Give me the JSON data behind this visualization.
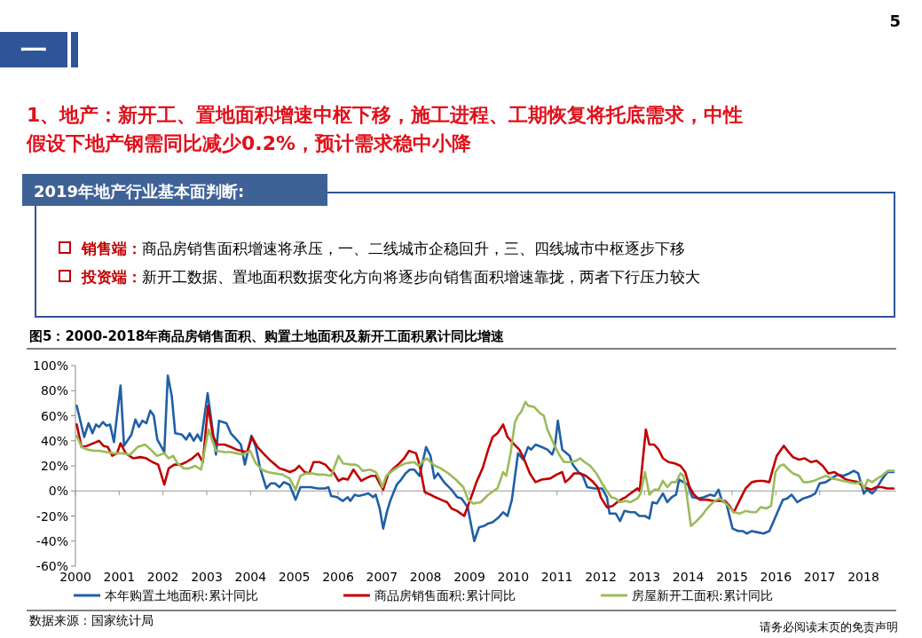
{
  "chart_data": {
    "type": "line",
    "title": "图5：2000-2018年商品房销售面积、购置土地面积及新开工面积累计同比增速",
    "annotations": [
      "5",
      "一",
      "1、地产：新开工、置地面积增速中枢下移，施工进程、工期恢复将托底需求，中性假设下地产钢需同比减少0.2%，预计需求稳中小降",
      "2019年地产行业基本面判断:",
      "销售端：商品房销售面积增速将承压，一、二线城市企稳回升，三、四线城市中枢逐步下移",
      "投资端：新开工数据、置地面积数据变化方向将逐步向销售面积增速靠拢，两者下行压力较大",
      "数据来源：国家统计局",
      "请务必阅读末页的免责声明"
    ],
    "xlim": [
      2000,
      2018.75
    ],
    "xticks": [
      2000,
      2001,
      2002,
      2003,
      2004,
      2005,
      2006,
      2007,
      2008,
      2009,
      2010,
      2011,
      2012,
      2013,
      2014,
      2015,
      2016,
      2017,
      2018
    ],
    "ylim": [
      -60,
      100
    ],
    "yticks": [
      {
        "value": -60,
        "label": "-60%"
      },
      {
        "value": -40,
        "label": "-40%"
      },
      {
        "value": -20,
        "label": "-20%"
      },
      {
        "value": 0,
        "label": "0%"
      },
      {
        "value": 20,
        "label": "20%"
      },
      {
        "value": 40,
        "label": "40%"
      },
      {
        "value": 60,
        "label": "60%"
      },
      {
        "value": 80,
        "label": "80%"
      },
      {
        "value": 100,
        "label": "100%"
      }
    ],
    "legend": "bottom",
    "series": [
      {
        "name": "本年购置土地面积:累计同比",
        "color": "#1f5fa6",
        "x": [
          2000.03,
          2000.2,
          2000.3,
          2000.39,
          2000.47,
          2000.54,
          2000.63,
          2000.71,
          2000.79,
          2000.88,
          2001.03,
          2001.11,
          2001.28,
          2001.37,
          2001.45,
          2001.53,
          2001.62,
          2001.71,
          2001.79,
          2001.87,
          2002.03,
          2002.11,
          2002.2,
          2002.28,
          2002.43,
          2002.53,
          2002.61,
          2002.7,
          2002.79,
          2002.87,
          2003.02,
          2003.21,
          2003.28,
          2003.45,
          2003.55,
          2003.68,
          2003.78,
          2003.87,
          2004.02,
          2004.12,
          2004.22,
          2004.36,
          2004.46,
          2004.56,
          2004.66,
          2004.76,
          2004.89,
          2005.03,
          2005.14,
          2005.24,
          2005.37,
          2005.54,
          2005.7,
          2005.78,
          2005.84,
          2005.98,
          2006.11,
          2006.22,
          2006.28,
          2006.38,
          2006.46,
          2006.59,
          2006.69,
          2006.8,
          2006.86,
          2006.95,
          2007.03,
          2007.12,
          2007.2,
          2007.34,
          2007.44,
          2007.54,
          2007.64,
          2007.74,
          2007.86,
          2008.01,
          2008.11,
          2008.2,
          2008.28,
          2008.42,
          2008.59,
          2008.72,
          2008.82,
          2008.96,
          2009.11,
          2009.22,
          2009.33,
          2009.43,
          2009.53,
          2009.67,
          2009.77,
          2009.87,
          2009.97,
          2010.11,
          2010.23,
          2010.34,
          2010.41,
          2010.51,
          2010.65,
          2010.78,
          2010.89,
          2010.95,
          2011.02,
          2011.12,
          2011.29,
          2011.36,
          2011.49,
          2011.59,
          2011.69,
          2011.86,
          2012.03,
          2012.14,
          2012.2,
          2012.34,
          2012.44,
          2012.54,
          2012.68,
          2012.78,
          2012.88,
          2013.01,
          2013.11,
          2013.18,
          2013.28,
          2013.42,
          2013.52,
          2013.62,
          2013.72,
          2013.79,
          2013.89,
          2013.99,
          2014.09,
          2014.23,
          2014.36,
          2014.5,
          2014.6,
          2014.69,
          2014.77,
          2014.87,
          2015.01,
          2015.14,
          2015.24,
          2015.34,
          2015.45,
          2015.58,
          2015.72,
          2015.85,
          2015.95,
          2016.05,
          2016.16,
          2016.26,
          2016.36,
          2016.49,
          2016.63,
          2016.8,
          2016.9,
          2017,
          2017.14,
          2017.27,
          2017.41,
          2017.54,
          2017.68,
          2017.78,
          2017.88,
          2018.01,
          2018.08,
          2018.2,
          2018.28,
          2018.42,
          2018.55,
          2018.69
        ],
        "values": [
          68,
          43,
          54,
          46,
          53,
          51,
          55,
          52,
          53,
          39,
          84,
          36,
          45,
          57,
          51,
          56,
          54,
          64,
          60,
          41,
          31,
          92,
          76,
          46,
          45,
          41,
          46,
          40,
          45,
          40,
          78,
          29,
          56,
          54,
          46,
          41,
          37,
          21,
          44,
          35,
          18,
          2,
          6,
          6,
          3,
          7,
          5,
          -7,
          3,
          3,
          3,
          2,
          2,
          3,
          -4,
          -5,
          -8,
          -5,
          -8,
          -3,
          -4,
          -3,
          -2,
          -5,
          -3,
          -14,
          -30,
          -16,
          -7,
          5,
          9,
          14,
          17,
          17,
          12,
          35,
          28,
          10,
          14,
          7,
          1,
          -5,
          -6,
          -13,
          -40,
          -29,
          -28,
          -26,
          -25,
          -21,
          -17,
          -20,
          -7,
          30,
          25,
          35,
          33,
          37,
          35,
          33,
          29,
          35,
          56,
          33,
          28,
          21,
          15,
          12,
          3,
          2,
          2,
          -5,
          -18,
          -18,
          -24,
          -16,
          -17,
          -17,
          -20,
          -20,
          -22,
          -9,
          -10,
          -2,
          -9,
          -5,
          -3,
          9,
          7,
          5,
          -5,
          -6,
          -5,
          -3,
          -4,
          1,
          -8,
          -10,
          -30,
          -32,
          -32,
          -34,
          -32,
          -33,
          -34,
          -32,
          -24,
          -16,
          -7,
          -6,
          -3,
          -9,
          -6,
          -4,
          -2,
          6,
          7,
          10,
          13,
          12,
          14,
          16,
          14,
          -2,
          1,
          -2,
          1,
          9,
          15,
          15
        ]
      },
      {
        "name": "商品房销售面积:累计同比",
        "color": "#c00000",
        "x": [
          2000.03,
          2000.14,
          2000.27,
          2000.41,
          2000.54,
          2000.64,
          2000.74,
          2000.84,
          2000.95,
          2001.03,
          2001.15,
          2001.32,
          2001.49,
          2001.62,
          2001.76,
          2001.89,
          2002.03,
          2002.13,
          2002.26,
          2002.4,
          2002.53,
          2002.67,
          2002.8,
          2002.91,
          2003.03,
          2003.14,
          2003.24,
          2003.41,
          2003.55,
          2003.68,
          2003.78,
          2003.92,
          2004.03,
          2004.16,
          2004.29,
          2004.43,
          2004.56,
          2004.66,
          2004.76,
          2004.9,
          2005.03,
          2005.11,
          2005.24,
          2005.34,
          2005.44,
          2005.57,
          2005.71,
          2005.81,
          2005.91,
          2006.01,
          2006.11,
          2006.22,
          2006.35,
          2006.53,
          2006.63,
          2006.76,
          2006.86,
          2006.95,
          2007.03,
          2007.14,
          2007.24,
          2007.37,
          2007.51,
          2007.62,
          2007.78,
          2007.86,
          2007.98,
          2008.11,
          2008.22,
          2008.35,
          2008.49,
          2008.59,
          2008.72,
          2008.88,
          2009.03,
          2009.16,
          2009.3,
          2009.43,
          2009.53,
          2009.64,
          2009.77,
          2009.87,
          2009.97,
          2010.14,
          2010.24,
          2010.38,
          2010.51,
          2010.65,
          2010.85,
          2010.99,
          2011.12,
          2011.19,
          2011.29,
          2011.39,
          2011.53,
          2011.66,
          2011.8,
          2011.93,
          2012,
          2012.14,
          2012.27,
          2012.41,
          2012.51,
          2012.57,
          2012.68,
          2012.84,
          2012.89,
          2013.03,
          2013.11,
          2013.22,
          2013.32,
          2013.42,
          2013.55,
          2013.69,
          2013.82,
          2013.93,
          2014.03,
          2014.13,
          2014.26,
          2014.43,
          2014.57,
          2014.7,
          2014.84,
          2014.94,
          2015.04,
          2015.18,
          2015.31,
          2015.45,
          2015.58,
          2015.72,
          2015.85,
          2015.92,
          2016.02,
          2016.18,
          2016.29,
          2016.39,
          2016.53,
          2016.66,
          2016.8,
          2016.93,
          2017.07,
          2017.2,
          2017.34,
          2017.47,
          2017.61,
          2017.74,
          2017.88,
          2018.01,
          2018.18,
          2018.28,
          2018.42,
          2018.55,
          2018.69
        ],
        "values": [
          53,
          35,
          36,
          38,
          40,
          36,
          35,
          28,
          30,
          38,
          30,
          26,
          27,
          26,
          23,
          21,
          5,
          18,
          21,
          21,
          23,
          26,
          30,
          23,
          68,
          44,
          37,
          37,
          35,
          33,
          32,
          31,
          43,
          35,
          30,
          25,
          21,
          18,
          17,
          15,
          17,
          20,
          15,
          14,
          23,
          23,
          21,
          17,
          14,
          8,
          10,
          9,
          17,
          8,
          10,
          12,
          12,
          6,
          1,
          13,
          17,
          21,
          26,
          32,
          30,
          21,
          -1,
          -3,
          -5,
          -7,
          -9,
          -14,
          -16,
          -20,
          -6,
          7,
          18,
          33,
          43,
          46,
          53,
          43,
          39,
          33,
          26,
          14,
          7,
          9,
          10,
          13,
          15,
          7,
          10,
          14,
          14,
          12,
          8,
          3,
          -5,
          -13,
          -12,
          -8,
          -6,
          -5,
          -2,
          2,
          0,
          49,
          37,
          37,
          33,
          26,
          23,
          22,
          20,
          15,
          3,
          -3,
          -7,
          -7,
          -8,
          -8,
          -8,
          -12,
          -17,
          -7,
          2,
          7,
          8,
          8,
          7,
          16,
          28,
          36,
          31,
          27,
          25,
          26,
          23,
          24,
          20,
          14,
          15,
          12,
          9,
          8,
          7,
          3,
          1,
          3,
          3,
          2,
          2
        ]
      },
      {
        "name": "房屋新开工面积:累计同比",
        "color": "#9bbb59",
        "x": [
          2000.03,
          2000.14,
          2000.27,
          2000.41,
          2000.54,
          2000.71,
          2000.88,
          2001.05,
          2001.25,
          2001.42,
          2001.59,
          2001.72,
          2001.86,
          2002.03,
          2002.13,
          2002.23,
          2002.33,
          2002.47,
          2002.6,
          2002.74,
          2002.87,
          2003.04,
          2003.21,
          2003.41,
          2003.55,
          2003.68,
          2003.82,
          2003.99,
          2004.12,
          2004.26,
          2004.39,
          2004.56,
          2004.73,
          2004.89,
          2005.03,
          2005.14,
          2005.27,
          2005.41,
          2005.54,
          2005.68,
          2005.84,
          2006.01,
          2006.11,
          2006.28,
          2006.38,
          2006.46,
          2006.56,
          2006.73,
          2006.86,
          2006.95,
          2007.01,
          2007.1,
          2007.24,
          2007.41,
          2007.54,
          2007.74,
          2007.84,
          2007.95,
          2008.03,
          2008.11,
          2008.22,
          2008.35,
          2008.52,
          2008.69,
          2008.86,
          2008.97,
          2009.09,
          2009.26,
          2009.43,
          2009.64,
          2009.77,
          2009.84,
          2009.94,
          2010.04,
          2010.11,
          2010.18,
          2010.28,
          2010.34,
          2010.48,
          2010.61,
          2010.7,
          2010.78,
          2010.92,
          2011.05,
          2011.16,
          2011.32,
          2011.43,
          2011.53,
          2011.63,
          2011.76,
          2011.9,
          2012.03,
          2012.14,
          2012.24,
          2012.34,
          2012.44,
          2012.57,
          2012.68,
          2012.84,
          2012.91,
          2013.01,
          2013.11,
          2013.22,
          2013.32,
          2013.42,
          2013.52,
          2013.62,
          2013.72,
          2013.82,
          2013.89,
          2013.96,
          2014.06,
          2014.16,
          2014.3,
          2014.43,
          2014.57,
          2014.7,
          2014.8,
          2014.91,
          2015.04,
          2015.18,
          2015.31,
          2015.45,
          2015.55,
          2015.65,
          2015.78,
          2015.89,
          2015.99,
          2016.09,
          2016.18,
          2016.29,
          2016.39,
          2016.53,
          2016.63,
          2016.73,
          2016.86,
          2017,
          2017.14,
          2017.27,
          2017.41,
          2017.54,
          2017.68,
          2017.81,
          2017.95,
          2018.01,
          2018.1,
          2018.2,
          2018.32,
          2018.42,
          2018.55,
          2018.69
        ],
        "values": [
          44,
          35,
          33,
          32,
          32,
          31,
          30,
          30,
          29,
          35,
          37,
          33,
          28,
          30,
          26,
          28,
          22,
          18,
          18,
          20,
          17,
          49,
          32,
          31,
          31,
          30,
          29,
          32,
          22,
          17,
          15,
          14,
          13,
          10,
          1,
          12,
          14,
          14,
          13,
          13,
          12,
          28,
          22,
          21,
          21,
          20,
          16,
          17,
          15,
          9,
          3,
          12,
          16,
          20,
          22,
          23,
          20,
          24,
          26,
          23,
          20,
          18,
          14,
          9,
          3,
          -7,
          -10,
          -9,
          -3,
          2,
          15,
          12,
          30,
          55,
          60,
          63,
          71,
          68,
          67,
          62,
          60,
          49,
          38,
          29,
          23,
          23,
          24,
          26,
          23,
          20,
          14,
          6,
          0,
          -5,
          -6,
          -9,
          -8,
          -9,
          -6,
          -2,
          15,
          -3,
          1,
          1,
          8,
          3,
          7,
          7,
          14,
          12,
          -2,
          -28,
          -25,
          -20,
          -14,
          -9,
          -6,
          -8,
          -12,
          -17,
          -18,
          -16,
          -17,
          -17,
          -13,
          -14,
          -12,
          15,
          20,
          21,
          17,
          14,
          12,
          7,
          7,
          8,
          10,
          12,
          10,
          9,
          8,
          7,
          6,
          7,
          2,
          9,
          7,
          10,
          12,
          16,
          16
        ]
      }
    ]
  }
}
